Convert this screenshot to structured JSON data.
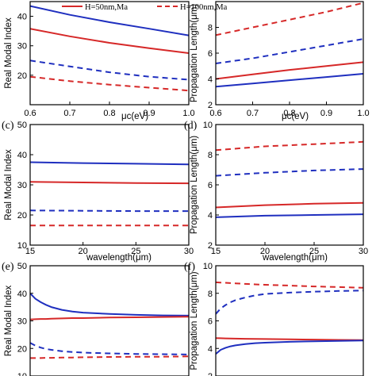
{
  "legend": [
    {
      "label": "H=50nm,Ma",
      "color": "#d62828",
      "dash": false
    },
    {
      "label": "H=100nm,Ma",
      "color": "#d62828",
      "dash": true
    }
  ],
  "chart_data": [
    {
      "type": "line",
      "panel_label": "",
      "xlabel": "μc(eV)",
      "ylabel": "Real Modal Index",
      "xlim": [
        0.6,
        1.0
      ],
      "ylim": [
        10,
        45
      ],
      "x_ticks": [
        "0.6",
        "0.7",
        "0.8",
        "0.9",
        "1.0"
      ],
      "y_ticks": [
        "20",
        "30",
        "40"
      ],
      "x": [
        0.6,
        0.7,
        0.8,
        0.9,
        1.0
      ],
      "series": [
        {
          "color": "#1f2fbf",
          "dash": false,
          "values": [
            43.5,
            40.5,
            38.0,
            35.8,
            33.5
          ]
        },
        {
          "color": "#d62828",
          "dash": false,
          "values": [
            35.8,
            33.2,
            31.0,
            29.2,
            27.5
          ]
        },
        {
          "color": "#1f2fbf",
          "dash": true,
          "values": [
            25.0,
            23.0,
            21.0,
            19.5,
            18.5
          ]
        },
        {
          "color": "#d62828",
          "dash": true,
          "values": [
            19.5,
            18.0,
            16.8,
            15.8,
            14.8
          ]
        }
      ]
    },
    {
      "type": "line",
      "panel_label": "",
      "xlabel": "μc(eV)",
      "ylabel": "Propagation Length(μm)",
      "xlim": [
        0.6,
        1.0
      ],
      "ylim": [
        2,
        10
      ],
      "x_ticks": [
        "0.6",
        "0.7",
        "0.8",
        "0.9",
        "1.0"
      ],
      "y_ticks": [
        "2",
        "4",
        "6",
        "8"
      ],
      "x": [
        0.6,
        0.7,
        0.8,
        0.9,
        1.0
      ],
      "series": [
        {
          "color": "#d62828",
          "dash": true,
          "values": [
            7.4,
            8.0,
            8.6,
            9.2,
            9.9
          ]
        },
        {
          "color": "#1f2fbf",
          "dash": true,
          "values": [
            5.2,
            5.6,
            6.1,
            6.6,
            7.1
          ]
        },
        {
          "color": "#d62828",
          "dash": false,
          "values": [
            4.0,
            4.35,
            4.7,
            5.0,
            5.3
          ]
        },
        {
          "color": "#1f2fbf",
          "dash": false,
          "values": [
            3.4,
            3.65,
            3.9,
            4.15,
            4.4
          ]
        }
      ]
    },
    {
      "type": "line",
      "panel_label": "(c)",
      "xlabel": "wavelength(μm)",
      "ylabel": "Real Modal Index",
      "xlim": [
        15,
        30
      ],
      "ylim": [
        10,
        50
      ],
      "x_ticks": [
        "15",
        "20",
        "25",
        "30"
      ],
      "y_ticks": [
        "10",
        "20",
        "30",
        "40",
        "50"
      ],
      "x": [
        15,
        20,
        25,
        30
      ],
      "series": [
        {
          "color": "#1f2fbf",
          "dash": false,
          "values": [
            37.5,
            37.2,
            37.0,
            36.8
          ]
        },
        {
          "color": "#d62828",
          "dash": false,
          "values": [
            31.0,
            30.8,
            30.6,
            30.5
          ]
        },
        {
          "color": "#1f2fbf",
          "dash": true,
          "values": [
            21.5,
            21.4,
            21.3,
            21.3
          ]
        },
        {
          "color": "#d62828",
          "dash": true,
          "values": [
            16.5,
            16.5,
            16.5,
            16.5
          ]
        }
      ]
    },
    {
      "type": "line",
      "panel_label": "(d)",
      "xlabel": "wavelength(μm)",
      "ylabel": "Propagation Length(μm)",
      "xlim": [
        15,
        30
      ],
      "ylim": [
        2,
        10
      ],
      "x_ticks": [
        "15",
        "20",
        "25",
        "30"
      ],
      "y_ticks": [
        "2",
        "4",
        "6",
        "8",
        "10"
      ],
      "x": [
        15,
        20,
        25,
        30
      ],
      "series": [
        {
          "color": "#d62828",
          "dash": true,
          "values": [
            8.3,
            8.55,
            8.7,
            8.85
          ]
        },
        {
          "color": "#1f2fbf",
          "dash": true,
          "values": [
            6.6,
            6.8,
            6.95,
            7.05
          ]
        },
        {
          "color": "#d62828",
          "dash": false,
          "values": [
            4.5,
            4.65,
            4.75,
            4.8
          ]
        },
        {
          "color": "#1f2fbf",
          "dash": false,
          "values": [
            3.85,
            3.95,
            4.0,
            4.05
          ]
        }
      ]
    },
    {
      "type": "line",
      "panel_label": "(e)",
      "xlabel": "",
      "ylabel": "Real Modal Index",
      "xlim": [
        0,
        30
      ],
      "ylim": [
        10,
        50
      ],
      "x_ticks": [],
      "y_ticks": [
        "10",
        "20",
        "30",
        "40",
        "50"
      ],
      "x": [
        0,
        1,
        2,
        3,
        4,
        6,
        8,
        10,
        15,
        20,
        25,
        30
      ],
      "series": [
        {
          "color": "#1f2fbf",
          "dash": false,
          "values": [
            40.0,
            38.0,
            36.8,
            35.8,
            35.0,
            34.0,
            33.4,
            33.0,
            32.5,
            32.2,
            32.0,
            31.9
          ]
        },
        {
          "color": "#d62828",
          "dash": false,
          "values": [
            30.5,
            30.6,
            30.7,
            30.7,
            30.8,
            30.9,
            31.0,
            31.0,
            31.2,
            31.3,
            31.4,
            31.5
          ]
        },
        {
          "color": "#1f2fbf",
          "dash": true,
          "values": [
            22.0,
            21.0,
            20.3,
            19.8,
            19.5,
            19.0,
            18.7,
            18.5,
            18.2,
            18.0,
            17.9,
            17.8
          ]
        },
        {
          "color": "#d62828",
          "dash": true,
          "values": [
            16.5,
            16.5,
            16.5,
            16.6,
            16.6,
            16.7,
            16.7,
            16.8,
            16.9,
            17.0,
            17.0,
            17.1
          ]
        }
      ]
    },
    {
      "type": "line",
      "panel_label": "(f)",
      "xlabel": "",
      "ylabel": "Propagation Length(μm)",
      "xlim": [
        0,
        30
      ],
      "ylim": [
        2,
        10
      ],
      "x_ticks": [],
      "y_ticks": [
        "2",
        "4",
        "6",
        "8",
        "10"
      ],
      "x": [
        0,
        1,
        2,
        3,
        4,
        6,
        8,
        10,
        15,
        20,
        25,
        30
      ],
      "series": [
        {
          "color": "#d62828",
          "dash": true,
          "values": [
            8.8,
            8.78,
            8.76,
            8.74,
            8.72,
            8.68,
            8.65,
            8.62,
            8.56,
            8.5,
            8.45,
            8.4
          ]
        },
        {
          "color": "#1f2fbf",
          "dash": true,
          "values": [
            6.5,
            6.9,
            7.15,
            7.35,
            7.5,
            7.7,
            7.85,
            7.95,
            8.05,
            8.12,
            8.17,
            8.2
          ]
        },
        {
          "color": "#d62828",
          "dash": false,
          "values": [
            4.75,
            4.74,
            4.73,
            4.72,
            4.71,
            4.7,
            4.69,
            4.68,
            4.66,
            4.64,
            4.62,
            4.6
          ]
        },
        {
          "color": "#1f2fbf",
          "dash": false,
          "values": [
            3.6,
            3.9,
            4.05,
            4.15,
            4.22,
            4.32,
            4.38,
            4.42,
            4.48,
            4.52,
            4.55,
            4.57
          ]
        }
      ]
    }
  ]
}
